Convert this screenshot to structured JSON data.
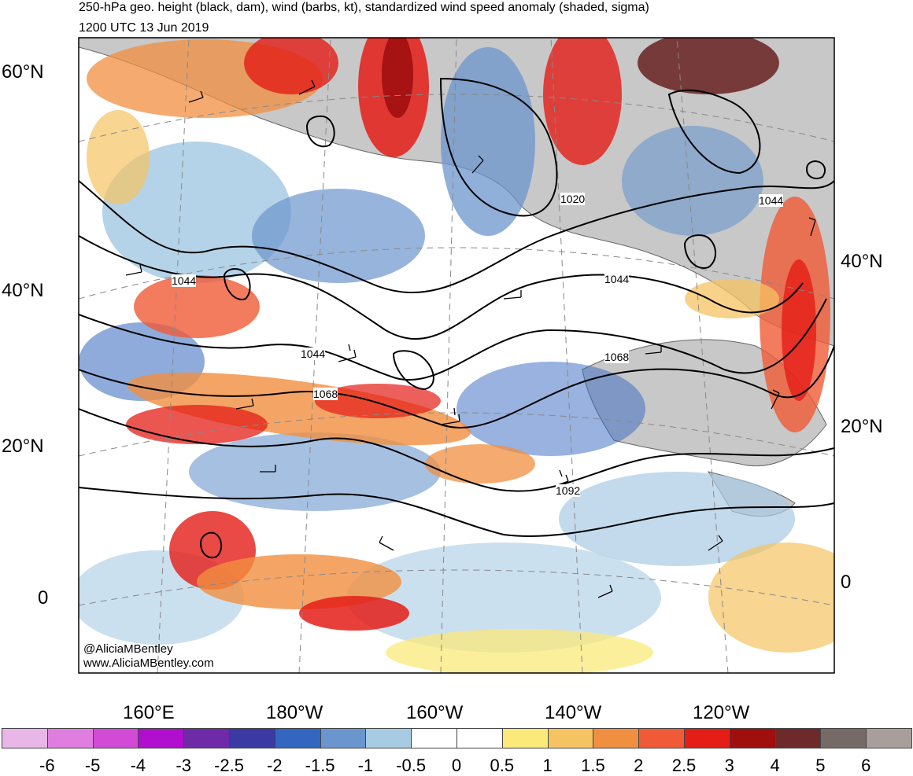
{
  "title": {
    "line1": "250-hPa geo. height (black, dam), wind (barbs, kt), standardized wind speed anomaly (shaded, sigma)",
    "line2": "1200 UTC 13 Jun 2019"
  },
  "lat_labels_left": [
    "60°N",
    "40°N",
    "20°N",
    "0"
  ],
  "lat_labels_right": [
    "40°N",
    "20°N",
    "0"
  ],
  "lon_labels": [
    "160°E",
    "180°W",
    "160°W",
    "140°W",
    "120°W"
  ],
  "contour_labels": [
    "1020",
    "1044",
    "1044",
    "1044",
    "1044",
    "1068",
    "1068",
    "1092"
  ],
  "credits": [
    "@AliciaMBentley",
    "www.AliciaMBentley.com"
  ],
  "colorbar": {
    "labels": [
      "-6",
      "-5",
      "-4",
      "-3",
      "-2.5",
      "-2",
      "-1.5",
      "-1",
      "-0.5",
      "0",
      "0.5",
      "1",
      "1.5",
      "2",
      "2.5",
      "3",
      "4",
      "5",
      "6"
    ],
    "colors": [
      "#e8b7e7",
      "#e07ee0",
      "#d24bd6",
      "#b10ecf",
      "#6f2aa8",
      "#3b3aa5",
      "#3366c0",
      "#6b96cd",
      "#a8cbe4",
      "#ffffff",
      "#ffffff",
      "#fbe97a",
      "#f5c361",
      "#f18f40",
      "#f05a36",
      "#e41d17",
      "#a10e0e",
      "#6e2a2a",
      "#756a68",
      "#a89f9d"
    ]
  }
}
